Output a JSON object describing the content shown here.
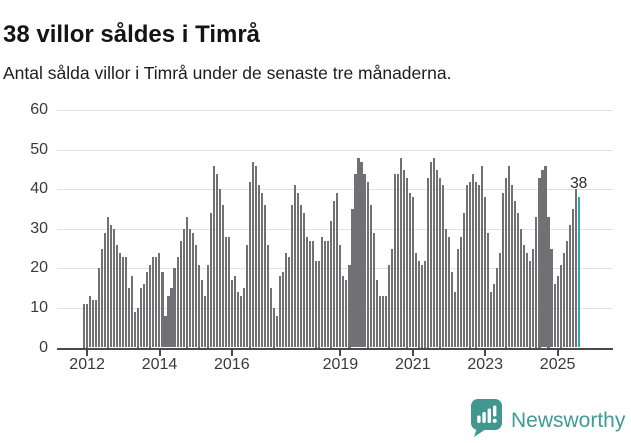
{
  "header": {
    "title": "38 villor såldes i Timrå",
    "subtitle": "Antal sålda villor i Timrå under de senaste tre månaderna."
  },
  "branding": {
    "name": "Newsworthy",
    "icon": "newsworthy-speech-bubble-barchart-icon",
    "text_color": "#3f9b95",
    "icon_color": "#41978f"
  },
  "colors": {
    "bar": "#707075",
    "highlight_bar": "#2ca6ad",
    "gridline": "#e1e1e1",
    "axis": "#4a4a4a"
  },
  "chart_data": {
    "type": "bar",
    "title": "38 villor såldes i Timrå",
    "subtitle": "Antal sålda villor i Timrå under de senaste tre månaderna.",
    "ylabel": "",
    "xlabel": "",
    "ylim": [
      0,
      60
    ],
    "grid": "horizontal",
    "yticks": [
      0,
      10,
      20,
      30,
      40,
      50,
      60
    ],
    "xticks": [
      {
        "label": "2012",
        "index": 1
      },
      {
        "label": "2014",
        "index": 25
      },
      {
        "label": "2016",
        "index": 49
      },
      {
        "label": "2019",
        "index": 85
      },
      {
        "label": "2021",
        "index": 109
      },
      {
        "label": "2023",
        "index": 133
      },
      {
        "label": "2025",
        "index": 157
      }
    ],
    "values": [
      11,
      11,
      13,
      12,
      12,
      20,
      25,
      29,
      33,
      31,
      30,
      26,
      24,
      23,
      23,
      15,
      18,
      9,
      10,
      15,
      16,
      19,
      21,
      23,
      23,
      24,
      19,
      8,
      13,
      15,
      20,
      23,
      27,
      30,
      33,
      30,
      29,
      26,
      21,
      17,
      13,
      21,
      34,
      46,
      44,
      40,
      36,
      28,
      28,
      17,
      18,
      14,
      13,
      15,
      26,
      42,
      47,
      46,
      41,
      39,
      36,
      26,
      15,
      10,
      8,
      18,
      19,
      24,
      23,
      36,
      41,
      39,
      36,
      34,
      28,
      27,
      27,
      22,
      22,
      28,
      27,
      27,
      32,
      37,
      39,
      26,
      18,
      17,
      21,
      35,
      44,
      48,
      47,
      44,
      42,
      36,
      29,
      17,
      13,
      13,
      13,
      21,
      25,
      44,
      44,
      48,
      45,
      43,
      39,
      38,
      24,
      22,
      21,
      22,
      43,
      47,
      48,
      45,
      43,
      41,
      30,
      28,
      19,
      14,
      25,
      28,
      34,
      41,
      42,
      44,
      42,
      41,
      46,
      38,
      29,
      14,
      16,
      20,
      24,
      39,
      43,
      46,
      41,
      37,
      34,
      30,
      26,
      24,
      22,
      25,
      33,
      43,
      45,
      46,
      33,
      25,
      16,
      18,
      21,
      24,
      27,
      31,
      35,
      40,
      38
    ],
    "highlight_index": 164,
    "highlight_label": "38",
    "legend": "none"
  }
}
